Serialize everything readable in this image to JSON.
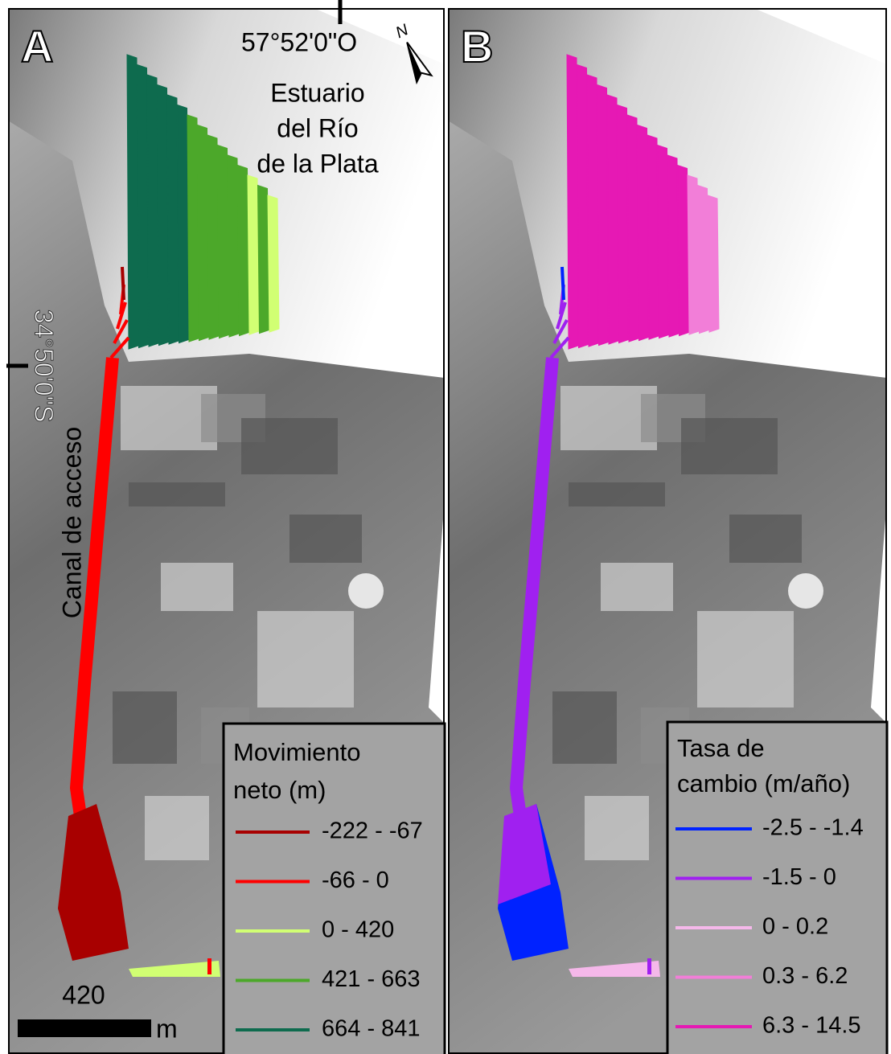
{
  "panels": [
    {
      "label": "A",
      "legend": {
        "title": [
          "Movimiento",
          "neto (m)"
        ],
        "entries": [
          {
            "label": "-222 - -67",
            "color": "#a80000"
          },
          {
            "label": "-66 - 0",
            "color": "#ff0000"
          },
          {
            "label": "0 - 420",
            "color": "#d1ff73"
          },
          {
            "label": "421 - 663",
            "color": "#4ca82a"
          },
          {
            "label": "664 - 841",
            "color": "#0e6b4e"
          }
        ]
      }
    },
    {
      "label": "B",
      "legend": {
        "title": [
          "Tasa de",
          "cambio (m/año)"
        ],
        "entries": [
          {
            "label": "-2.5 - -1.4",
            "color": "#0022ff"
          },
          {
            "label": "-1.5 - 0",
            "color": "#a020f0"
          },
          {
            "label": "0 - 0.2",
            "color": "#f5b8ea"
          },
          {
            "label": "0.3 - 6.2",
            "color": "#f27ed8"
          },
          {
            "label": "6.3 - 14.5",
            "color": "#e619b4"
          }
        ]
      }
    }
  ],
  "longitude": "57°52'0\"O",
  "latitude": "34°50'0\"S",
  "estuary_label": [
    "Estuario",
    "del Río",
    "de la Plata"
  ],
  "canal_label": "Canal de acceso",
  "scale_bar": {
    "distance": "420",
    "unit": "m"
  }
}
